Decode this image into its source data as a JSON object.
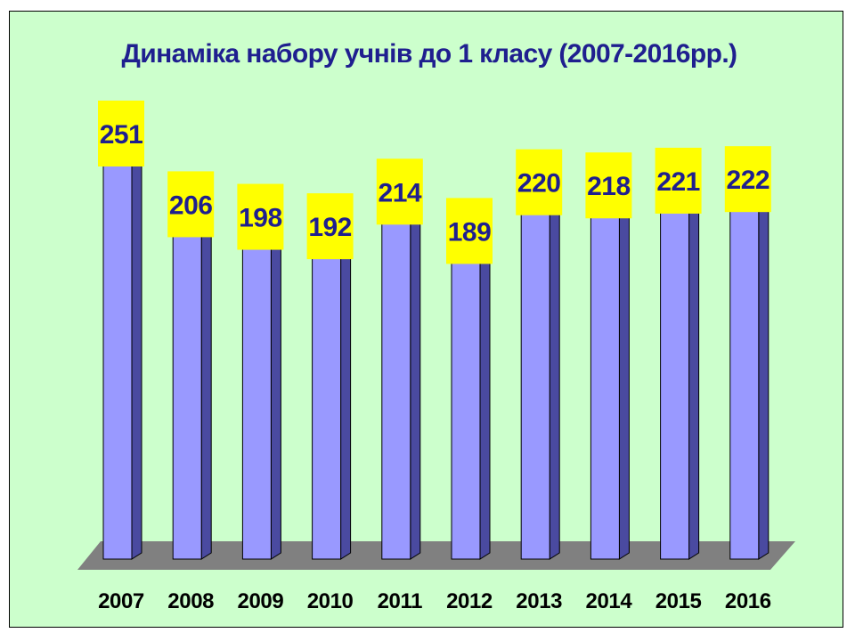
{
  "chart_data": {
    "type": "bar",
    "title": "Динаміка набору учнів до 1 класу (2007-2016рр.)",
    "categories": [
      "2007",
      "2008",
      "2009",
      "2010",
      "2011",
      "2012",
      "2013",
      "2014",
      "2015",
      "2016"
    ],
    "values": [
      251,
      206,
      198,
      192,
      214,
      189,
      220,
      218,
      221,
      222
    ],
    "ylim": [
      0,
      251
    ],
    "grid": false,
    "legend": "none",
    "colors": {
      "background": "#ccffcc",
      "bar_face": "#9999ff",
      "bar_side": "#4a4aa0",
      "bar_top": "#5c5cb8",
      "floor": "#808080",
      "label_box": "#ffff00",
      "label_text": "#1f1f8f",
      "title_text": "#1f1f8f"
    }
  }
}
